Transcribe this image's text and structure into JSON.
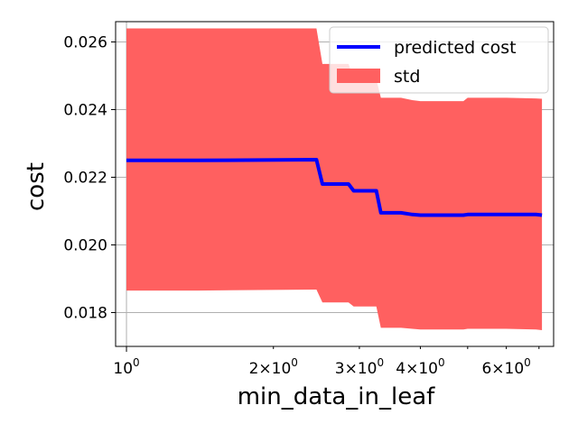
{
  "chart_data": {
    "type": "line",
    "xscale": "log",
    "xlabel": "min_data_in_leaf",
    "ylabel": "cost",
    "xlim": [
      0.95,
      7.5
    ],
    "ylim": [
      0.017,
      0.0266
    ],
    "grid": "y-only",
    "legend_position": "top-right",
    "x_major_ticks": [
      {
        "value": 1,
        "base": "10",
        "exp": "0"
      }
    ],
    "x_minor_ticks": [
      {
        "value": 2,
        "coef": "2",
        "base": "10",
        "exp": "0"
      },
      {
        "value": 3,
        "coef": "3",
        "base": "10",
        "exp": "0"
      },
      {
        "value": 4,
        "coef": "4",
        "base": "10",
        "exp": "0"
      },
      {
        "value": 6,
        "coef": "6",
        "base": "10",
        "exp": "0"
      }
    ],
    "x_unlabeled_minor_ticks": [
      5,
      7
    ],
    "y_ticks": [
      {
        "value": 0.018,
        "label": "0.018"
      },
      {
        "value": 0.02,
        "label": "0.020"
      },
      {
        "value": 0.022,
        "label": "0.022"
      },
      {
        "value": 0.024,
        "label": "0.024"
      },
      {
        "value": 0.026,
        "label": "0.026"
      }
    ],
    "series": [
      {
        "name": "predicted cost",
        "kind": "line",
        "color": "#0000ff",
        "x": [
          1.0,
          1.4,
          2.45,
          2.52,
          2.85,
          2.92,
          3.25,
          3.32,
          3.65,
          3.85,
          4.0,
          4.9,
          5.0,
          6.0,
          6.9,
          7.1
        ],
        "y": [
          0.0225,
          0.0225,
          0.02252,
          0.0218,
          0.0218,
          0.0216,
          0.0216,
          0.02095,
          0.02095,
          0.0209,
          0.02088,
          0.02088,
          0.0209,
          0.0209,
          0.0209,
          0.02088
        ]
      },
      {
        "name": "std",
        "kind": "band",
        "color": "#ff6060",
        "x": [
          1.0,
          1.4,
          2.45,
          2.52,
          2.85,
          2.92,
          3.25,
          3.32,
          3.65,
          3.85,
          4.0,
          4.9,
          5.0,
          6.0,
          6.9,
          7.1
        ],
        "upper": [
          0.0264,
          0.0264,
          0.0264,
          0.02535,
          0.02535,
          0.0249,
          0.0249,
          0.02435,
          0.02435,
          0.02428,
          0.02425,
          0.02425,
          0.02435,
          0.02435,
          0.02433,
          0.02432
        ],
        "lower": [
          0.01865,
          0.01865,
          0.01868,
          0.0183,
          0.0183,
          0.01818,
          0.01818,
          0.01755,
          0.01755,
          0.01752,
          0.0175,
          0.0175,
          0.01752,
          0.01752,
          0.0175,
          0.01748
        ]
      }
    ]
  }
}
